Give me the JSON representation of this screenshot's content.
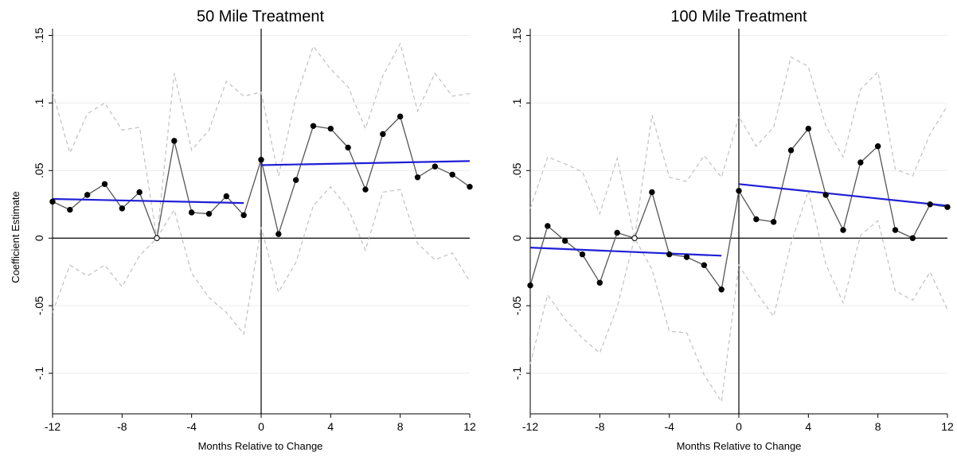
{
  "chart_data": [
    {
      "type": "line",
      "title": "50 Mile Treatment",
      "xlabel": "Months Relative to Change",
      "ylabel": "Coefficient Estimate",
      "xlim": [
        -12,
        12
      ],
      "ylim": [
        -0.13,
        0.155
      ],
      "xticks": [
        -12,
        -8,
        -4,
        0,
        4,
        8,
        12
      ],
      "xtick_labels": [
        "-12",
        "-8",
        "-4",
        "0",
        "4",
        "8",
        "12"
      ],
      "yticks": [
        -0.1,
        -0.05,
        0,
        0.05,
        0.1,
        0.15
      ],
      "ytick_labels": [
        "-.1",
        "-.05",
        "0",
        ".05",
        ".1",
        ".15"
      ],
      "grid": true,
      "reference_lines": {
        "x": 0,
        "y": 0
      },
      "colors": {
        "estimate": "#555555",
        "marker": "#000000",
        "ci": "#c0c0c0",
        "fit": "#1f1fd6"
      },
      "x": [
        -12,
        -11,
        -10,
        -9,
        -8,
        -7,
        -6,
        -5,
        -4,
        -3,
        -2,
        -1,
        0,
        1,
        2,
        3,
        4,
        5,
        6,
        7,
        8,
        9,
        10,
        11,
        12
      ],
      "series": [
        {
          "role": "estimate",
          "values": [
            0.027,
            0.021,
            0.032,
            0.04,
            0.022,
            0.034,
            0.0,
            0.072,
            0.019,
            0.018,
            0.031,
            0.017,
            0.058,
            0.003,
            0.043,
            0.083,
            0.081,
            0.067,
            0.036,
            0.077,
            0.09,
            0.045,
            0.053,
            0.047,
            0.038
          ]
        },
        {
          "role": "ci_upper",
          "values": [
            0.108,
            0.063,
            0.092,
            0.1,
            0.08,
            0.082,
            0.0,
            0.122,
            0.065,
            0.08,
            0.116,
            0.105,
            0.108,
            0.046,
            0.104,
            0.142,
            0.125,
            0.112,
            0.081,
            0.12,
            0.144,
            0.094,
            0.122,
            0.105,
            0.107
          ]
        },
        {
          "role": "ci_lower",
          "values": [
            -0.055,
            -0.02,
            -0.028,
            -0.02,
            -0.036,
            -0.013,
            0.0,
            0.021,
            -0.026,
            -0.044,
            -0.055,
            -0.071,
            0.008,
            -0.04,
            -0.018,
            0.024,
            0.038,
            0.022,
            -0.009,
            0.034,
            0.036,
            -0.004,
            -0.016,
            -0.011,
            -0.032
          ]
        },
        {
          "role": "fit_pre",
          "x": [
            -12,
            -1
          ],
          "values": [
            0.029,
            0.026
          ]
        },
        {
          "role": "fit_post",
          "x": [
            0,
            12
          ],
          "values": [
            0.054,
            0.057
          ]
        }
      ],
      "hollow_point_x": -6
    },
    {
      "type": "line",
      "title": "100 Mile Treatment",
      "xlabel": "Months Relative to Change",
      "ylabel": "",
      "xlim": [
        -12,
        12
      ],
      "ylim": [
        -0.13,
        0.155
      ],
      "xticks": [
        -12,
        -8,
        -4,
        0,
        4,
        8,
        12
      ],
      "xtick_labels": [
        "-12",
        "-8",
        "-4",
        "0",
        "4",
        "8",
        "12"
      ],
      "yticks": [
        -0.1,
        -0.05,
        0,
        0.05,
        0.1,
        0.15
      ],
      "ytick_labels": [
        "-.1",
        "-.05",
        "0",
        ".05",
        ".1",
        ".15"
      ],
      "grid": true,
      "reference_lines": {
        "x": 0,
        "y": 0
      },
      "colors": {
        "estimate": "#555555",
        "marker": "#000000",
        "ci": "#c0c0c0",
        "fit": "#1f1fd6"
      },
      "x": [
        -12,
        -11,
        -10,
        -9,
        -8,
        -7,
        -6,
        -5,
        -4,
        -3,
        -2,
        -1,
        0,
        1,
        2,
        3,
        4,
        5,
        6,
        7,
        8,
        9,
        10,
        11,
        12
      ],
      "series": [
        {
          "role": "estimate",
          "values": [
            -0.035,
            0.009,
            -0.002,
            -0.012,
            -0.033,
            0.004,
            0.0,
            0.034,
            -0.012,
            -0.014,
            -0.02,
            -0.038,
            0.035,
            0.014,
            0.012,
            0.065,
            0.081,
            0.032,
            0.006,
            0.056,
            0.068,
            0.006,
            0.0,
            0.025,
            0.023
          ]
        },
        {
          "role": "ci_upper",
          "values": [
            0.022,
            0.06,
            0.055,
            0.049,
            0.018,
            0.059,
            0.0,
            0.091,
            0.045,
            0.042,
            0.061,
            0.045,
            0.09,
            0.068,
            0.082,
            0.134,
            0.127,
            0.083,
            0.06,
            0.11,
            0.123,
            0.051,
            0.046,
            0.077,
            0.098
          ]
        },
        {
          "role": "ci_lower",
          "values": [
            -0.093,
            -0.042,
            -0.06,
            -0.074,
            -0.085,
            -0.051,
            0.0,
            -0.023,
            -0.069,
            -0.07,
            -0.101,
            -0.121,
            -0.02,
            -0.04,
            -0.058,
            -0.004,
            0.035,
            -0.019,
            -0.048,
            0.002,
            0.013,
            -0.039,
            -0.046,
            -0.025,
            -0.053
          ]
        },
        {
          "role": "fit_pre",
          "x": [
            -12,
            -1
          ],
          "values": [
            -0.007,
            -0.013
          ]
        },
        {
          "role": "fit_post",
          "x": [
            0,
            12
          ],
          "values": [
            0.04,
            0.024
          ]
        }
      ],
      "hollow_point_x": -6
    }
  ]
}
